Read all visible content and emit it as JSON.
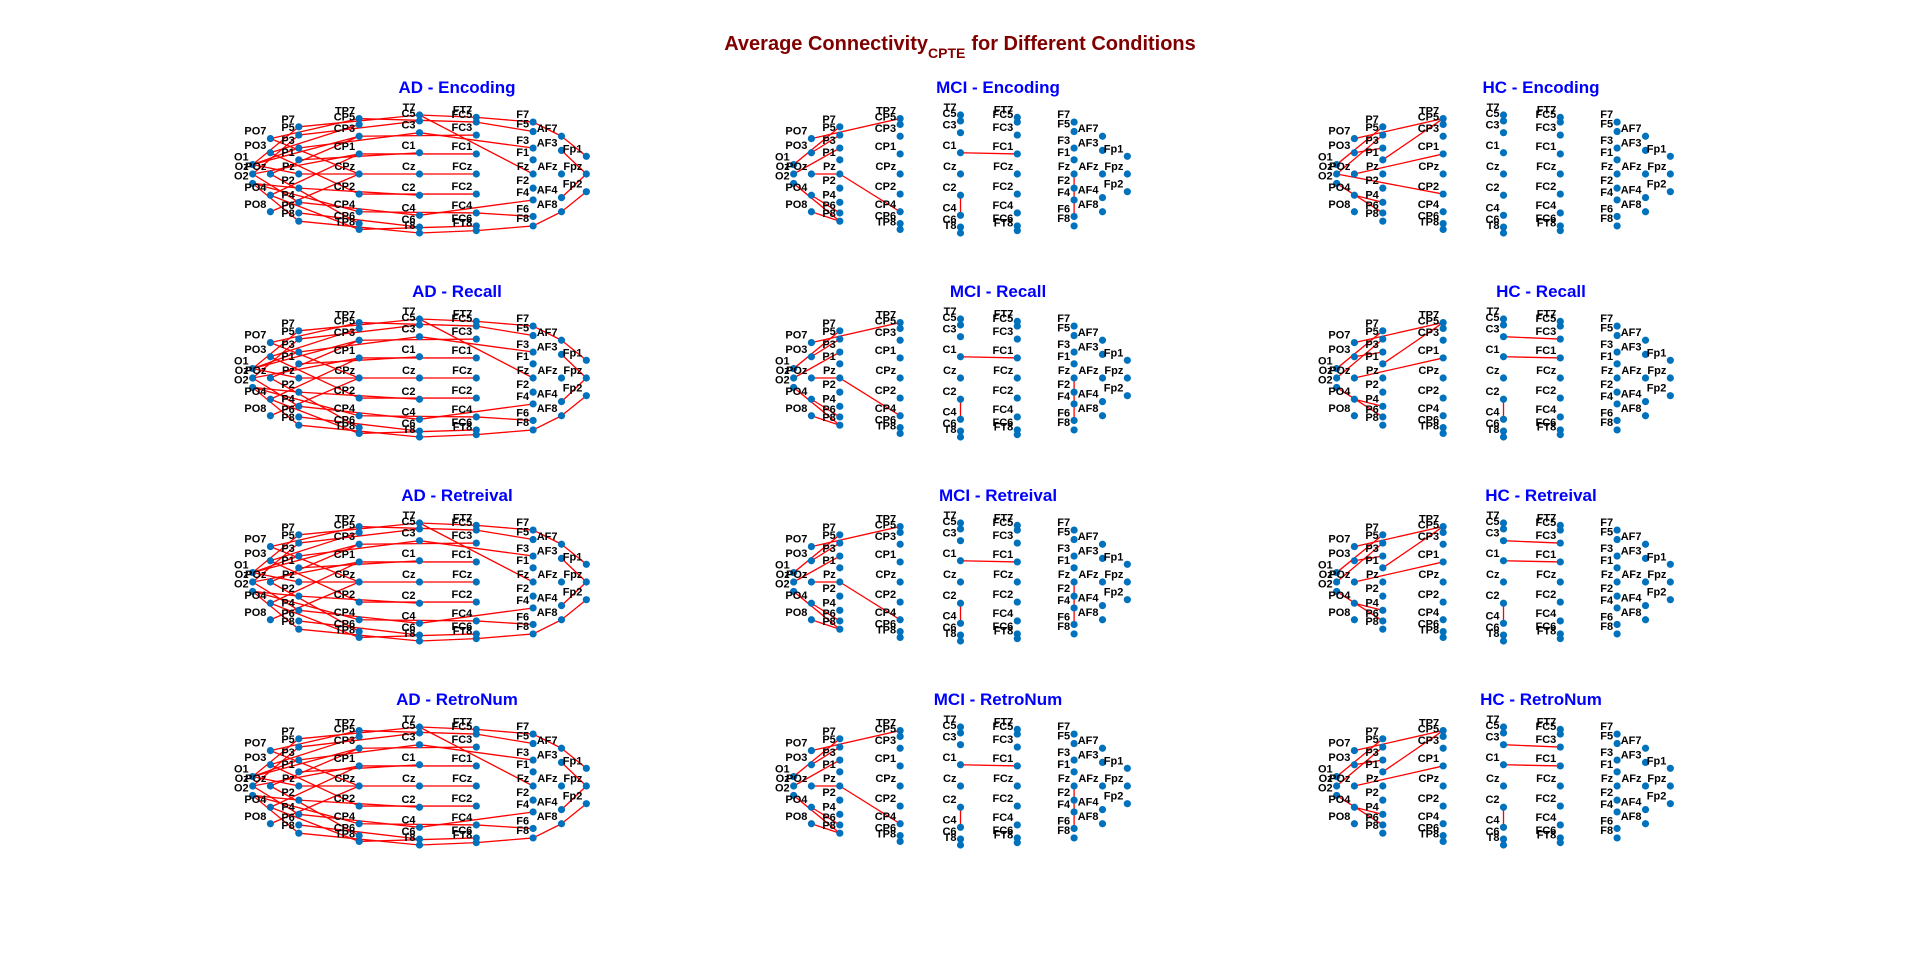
{
  "title": {
    "text": "Average Connectivity",
    "subscript": "CPTE",
    "rest": "for Different Conditions"
  },
  "nodes": [
    "O1",
    "Oz",
    "O2",
    "PO7",
    "PO3",
    "POz",
    "PO4",
    "PO8",
    "P7",
    "P5",
    "P3",
    "P1",
    "Pz",
    "P2",
    "P4",
    "P6",
    "P8",
    "TP7",
    "CP5",
    "CP3",
    "CP1",
    "CPz",
    "CP2",
    "CP4",
    "CP6",
    "TP8",
    "T7",
    "C5",
    "C3",
    "C1",
    "Cz",
    "C2",
    "C4",
    "C6",
    "T8",
    "FT7",
    "FC5",
    "FC3",
    "FC1",
    "FCz",
    "FC2",
    "FC4",
    "FC6",
    "FT8",
    "F7",
    "F5",
    "F3",
    "F1",
    "Fz",
    "F2",
    "F4",
    "F6",
    "F8",
    "AF7",
    "AF3",
    "AFz",
    "AF4",
    "AF8",
    "Fp1",
    "Fpz",
    "Fp2"
  ],
  "panels": [
    {
      "title": "AD - Encoding",
      "edges": [
        [
          0,
          8
        ],
        [
          0,
          10
        ],
        [
          0,
          12
        ],
        [
          0,
          19
        ],
        [
          1,
          9
        ],
        [
          1,
          14
        ],
        [
          1,
          20
        ],
        [
          2,
          13
        ],
        [
          2,
          16
        ],
        [
          2,
          23
        ],
        [
          3,
          17
        ],
        [
          3,
          21
        ],
        [
          4,
          22
        ],
        [
          4,
          18
        ],
        [
          5,
          19
        ],
        [
          5,
          24
        ],
        [
          6,
          20
        ],
        [
          6,
          25
        ],
        [
          7,
          21
        ],
        [
          8,
          26
        ],
        [
          10,
          28
        ],
        [
          12,
          30
        ],
        [
          14,
          32
        ],
        [
          16,
          34
        ],
        [
          9,
          27
        ],
        [
          11,
          29
        ],
        [
          13,
          31
        ],
        [
          15,
          33
        ],
        [
          17,
          36
        ],
        [
          19,
          37
        ],
        [
          23,
          41
        ],
        [
          25,
          42
        ],
        [
          26,
          35
        ],
        [
          34,
          43
        ],
        [
          35,
          44
        ],
        [
          43,
          52
        ],
        [
          44,
          53
        ],
        [
          52,
          57
        ],
        [
          53,
          58
        ],
        [
          57,
          60
        ],
        [
          28,
          46
        ],
        [
          32,
          50
        ],
        [
          26,
          48
        ],
        [
          20,
          38
        ],
        [
          22,
          40
        ],
        [
          30,
          39
        ],
        [
          36,
          45
        ],
        [
          41,
          51
        ],
        [
          54,
          59
        ],
        [
          56,
          59
        ]
      ]
    },
    {
      "title": "MCI - Encoding",
      "edges": [
        [
          0,
          8
        ],
        [
          1,
          10
        ],
        [
          2,
          16
        ],
        [
          3,
          17
        ],
        [
          4,
          9
        ],
        [
          6,
          15
        ],
        [
          7,
          16
        ],
        [
          5,
          12
        ],
        [
          12,
          23
        ],
        [
          29,
          38
        ],
        [
          31,
          32
        ],
        [
          48,
          51
        ]
      ]
    },
    {
      "title": "HC - Encoding",
      "edges": [
        [
          0,
          8
        ],
        [
          1,
          9
        ],
        [
          2,
          15
        ],
        [
          3,
          17
        ],
        [
          4,
          10
        ],
        [
          6,
          14
        ],
        [
          11,
          17
        ],
        [
          5,
          20
        ],
        [
          1,
          22
        ]
      ]
    },
    {
      "title": "AD - Recall",
      "edges": [
        [
          0,
          8
        ],
        [
          0,
          10
        ],
        [
          0,
          12
        ],
        [
          0,
          19
        ],
        [
          1,
          9
        ],
        [
          1,
          14
        ],
        [
          1,
          20
        ],
        [
          2,
          13
        ],
        [
          2,
          16
        ],
        [
          2,
          23
        ],
        [
          3,
          17
        ],
        [
          3,
          21
        ],
        [
          4,
          22
        ],
        [
          4,
          18
        ],
        [
          5,
          19
        ],
        [
          5,
          24
        ],
        [
          6,
          20
        ],
        [
          6,
          25
        ],
        [
          7,
          21
        ],
        [
          8,
          26
        ],
        [
          10,
          28
        ],
        [
          12,
          30
        ],
        [
          14,
          32
        ],
        [
          16,
          34
        ],
        [
          9,
          27
        ],
        [
          11,
          29
        ],
        [
          13,
          31
        ],
        [
          15,
          33
        ],
        [
          17,
          36
        ],
        [
          19,
          37
        ],
        [
          23,
          41
        ],
        [
          25,
          42
        ],
        [
          26,
          35
        ],
        [
          34,
          43
        ],
        [
          35,
          44
        ],
        [
          43,
          52
        ],
        [
          44,
          53
        ],
        [
          52,
          57
        ],
        [
          53,
          58
        ],
        [
          57,
          60
        ],
        [
          28,
          46
        ],
        [
          32,
          50
        ],
        [
          26,
          48
        ],
        [
          20,
          38
        ],
        [
          22,
          40
        ],
        [
          30,
          39
        ],
        [
          36,
          45
        ],
        [
          41,
          51
        ],
        [
          54,
          59
        ],
        [
          56,
          59
        ]
      ]
    },
    {
      "title": "MCI - Recall",
      "edges": [
        [
          0,
          8
        ],
        [
          1,
          10
        ],
        [
          2,
          16
        ],
        [
          3,
          17
        ],
        [
          4,
          9
        ],
        [
          6,
          15
        ],
        [
          7,
          16
        ],
        [
          5,
          12
        ],
        [
          12,
          23
        ],
        [
          29,
          38
        ],
        [
          31,
          32
        ],
        [
          48,
          51
        ]
      ]
    },
    {
      "title": "HC - Recall",
      "edges": [
        [
          0,
          8
        ],
        [
          1,
          9
        ],
        [
          2,
          15
        ],
        [
          3,
          17
        ],
        [
          4,
          10
        ],
        [
          6,
          14
        ],
        [
          11,
          17
        ],
        [
          5,
          20
        ],
        [
          28,
          37
        ],
        [
          29,
          38
        ],
        [
          31,
          32
        ]
      ]
    },
    {
      "title": "AD - Retreival",
      "edges": [
        [
          0,
          8
        ],
        [
          0,
          10
        ],
        [
          0,
          12
        ],
        [
          0,
          19
        ],
        [
          1,
          9
        ],
        [
          1,
          14
        ],
        [
          1,
          20
        ],
        [
          2,
          13
        ],
        [
          2,
          16
        ],
        [
          2,
          23
        ],
        [
          3,
          17
        ],
        [
          3,
          21
        ],
        [
          4,
          22
        ],
        [
          4,
          18
        ],
        [
          5,
          19
        ],
        [
          5,
          24
        ],
        [
          6,
          20
        ],
        [
          6,
          25
        ],
        [
          7,
          21
        ],
        [
          8,
          26
        ],
        [
          10,
          28
        ],
        [
          12,
          30
        ],
        [
          14,
          32
        ],
        [
          16,
          34
        ],
        [
          9,
          27
        ],
        [
          11,
          29
        ],
        [
          13,
          31
        ],
        [
          15,
          33
        ],
        [
          17,
          36
        ],
        [
          19,
          37
        ],
        [
          23,
          41
        ],
        [
          25,
          42
        ],
        [
          26,
          35
        ],
        [
          34,
          43
        ],
        [
          35,
          44
        ],
        [
          43,
          52
        ],
        [
          44,
          53
        ],
        [
          52,
          57
        ],
        [
          53,
          58
        ],
        [
          57,
          60
        ],
        [
          28,
          46
        ],
        [
          32,
          50
        ],
        [
          26,
          48
        ],
        [
          20,
          38
        ],
        [
          22,
          40
        ],
        [
          30,
          39
        ],
        [
          36,
          45
        ],
        [
          41,
          51
        ],
        [
          54,
          59
        ],
        [
          56,
          59
        ]
      ]
    },
    {
      "title": "MCI - Retreival",
      "edges": [
        [
          0,
          8
        ],
        [
          1,
          10
        ],
        [
          2,
          16
        ],
        [
          3,
          17
        ],
        [
          4,
          9
        ],
        [
          6,
          15
        ],
        [
          7,
          16
        ],
        [
          5,
          12
        ],
        [
          12,
          23
        ],
        [
          29,
          38
        ],
        [
          31,
          32
        ],
        [
          48,
          51
        ]
      ]
    },
    {
      "title": "HC - Retreival",
      "edges": [
        [
          0,
          8
        ],
        [
          1,
          9
        ],
        [
          2,
          15
        ],
        [
          3,
          17
        ],
        [
          4,
          10
        ],
        [
          6,
          14
        ],
        [
          11,
          17
        ],
        [
          5,
          20
        ],
        [
          28,
          37
        ],
        [
          29,
          38
        ],
        [
          31,
          32
        ]
      ]
    },
    {
      "title": "AD - RetroNum",
      "edges": [
        [
          0,
          8
        ],
        [
          0,
          10
        ],
        [
          0,
          12
        ],
        [
          0,
          19
        ],
        [
          1,
          9
        ],
        [
          1,
          14
        ],
        [
          1,
          20
        ],
        [
          2,
          13
        ],
        [
          2,
          16
        ],
        [
          2,
          23
        ],
        [
          3,
          17
        ],
        [
          3,
          21
        ],
        [
          4,
          22
        ],
        [
          4,
          18
        ],
        [
          5,
          19
        ],
        [
          5,
          24
        ],
        [
          6,
          20
        ],
        [
          6,
          25
        ],
        [
          7,
          21
        ],
        [
          8,
          26
        ],
        [
          10,
          28
        ],
        [
          12,
          30
        ],
        [
          14,
          32
        ],
        [
          16,
          34
        ],
        [
          9,
          27
        ],
        [
          11,
          29
        ],
        [
          13,
          31
        ],
        [
          15,
          33
        ],
        [
          17,
          36
        ],
        [
          19,
          37
        ],
        [
          23,
          41
        ],
        [
          25,
          42
        ],
        [
          26,
          35
        ],
        [
          34,
          43
        ],
        [
          35,
          44
        ],
        [
          43,
          52
        ],
        [
          44,
          53
        ],
        [
          52,
          57
        ],
        [
          53,
          58
        ],
        [
          57,
          60
        ],
        [
          28,
          46
        ],
        [
          32,
          50
        ],
        [
          26,
          48
        ],
        [
          20,
          38
        ],
        [
          22,
          40
        ],
        [
          30,
          39
        ],
        [
          36,
          45
        ],
        [
          41,
          51
        ],
        [
          54,
          59
        ],
        [
          56,
          59
        ]
      ]
    },
    {
      "title": "MCI - RetroNum",
      "edges": [
        [
          0,
          8
        ],
        [
          1,
          10
        ],
        [
          2,
          16
        ],
        [
          3,
          17
        ],
        [
          4,
          9
        ],
        [
          6,
          15
        ],
        [
          7,
          16
        ],
        [
          5,
          12
        ],
        [
          12,
          23
        ],
        [
          29,
          38
        ],
        [
          31,
          32
        ],
        [
          48,
          51
        ]
      ]
    },
    {
      "title": "HC - RetroNum",
      "edges": [
        [
          0,
          8
        ],
        [
          1,
          9
        ],
        [
          2,
          15
        ],
        [
          3,
          17
        ],
        [
          4,
          10
        ],
        [
          6,
          14
        ],
        [
          11,
          17
        ],
        [
          5,
          20
        ],
        [
          28,
          37
        ],
        [
          29,
          38
        ],
        [
          31,
          32
        ]
      ]
    }
  ]
}
